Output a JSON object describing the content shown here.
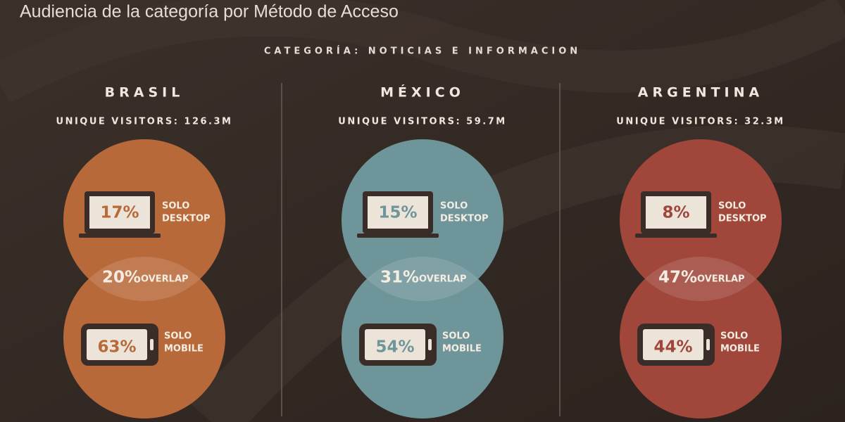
{
  "header": {
    "title": "Audiencia de la categoría por Método de Acceso",
    "subtitle": "CATEGORÍA: NOTICIAS E INFORMACION"
  },
  "labels": {
    "desktop": [
      "SOLO",
      "DESKTOP"
    ],
    "mobile": [
      "SOLO",
      "MOBILE"
    ],
    "overlap": "OVERLAP"
  },
  "countries": [
    {
      "name": "BRASIL",
      "visitors": "UNIQUE VISITORS: 126.3M",
      "desktop": "17%",
      "overlap": "20%",
      "mobile": "63%",
      "color": "#b8693a"
    },
    {
      "name": "MÉXICO",
      "visitors": "UNIQUE VISITORS: 59.7M",
      "desktop": "15%",
      "overlap": "31%",
      "mobile": "54%",
      "color": "#6e9599"
    },
    {
      "name": "ARGENTINA",
      "visitors": "UNIQUE VISITORS: 32.3M",
      "desktop": "8%",
      "overlap": "47%",
      "mobile": "44%",
      "color": "#a0463a"
    }
  ]
}
